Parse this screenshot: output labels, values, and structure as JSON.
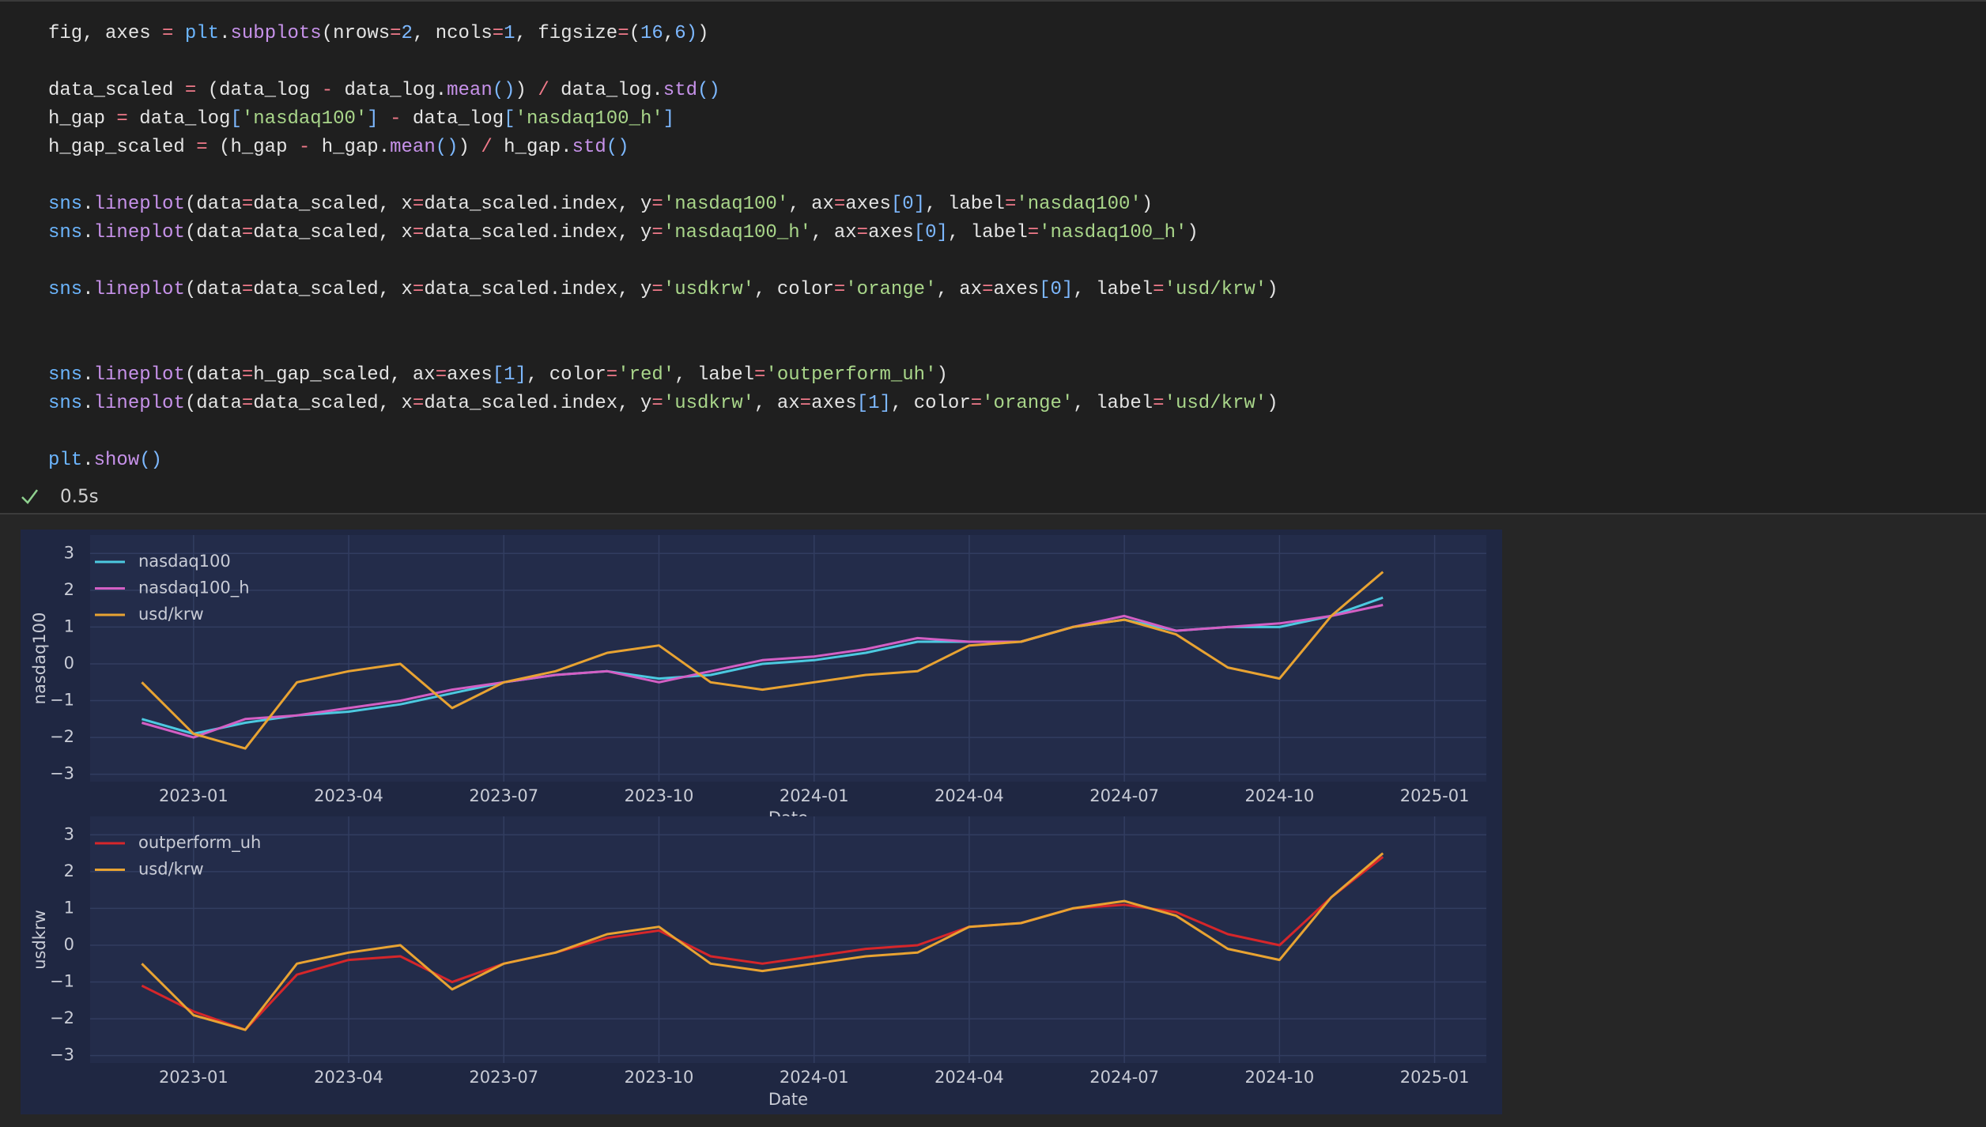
{
  "notebook": {
    "code_lines": [
      "fig, axes = plt.subplots(nrows=2, ncols=1, figsize=(16,6))",
      "data_scaled = (data_log - data_log.mean()) / data_log.std()",
      "h_gap = data_log['nasdaq100'] - data_log['nasdaq100_h']",
      "h_gap_scaled = (h_gap - h_gap.mean()) / h_gap.std()",
      "sns.lineplot(data=data_scaled, x=data_scaled.index, y='nasdaq100', ax=axes[0], label='nasdaq100')",
      "sns.lineplot(data=data_scaled, x=data_scaled.index, y='nasdaq100_h', ax=axes[0], label='nasdaq100_h')",
      "sns.lineplot(data=data_scaled, x=data_scaled.index, y='usdkrw', color='orange', ax=axes[0], label='usd/krw')",
      "sns.lineplot(data=h_gap_scaled, ax=axes[1], color='red', label='outperform_uh')",
      "sns.lineplot(data=data_scaled, x=data_scaled.index, y='usdkrw', ax=axes[1], color='orange', label='usd/krw')",
      "plt.show()"
    ],
    "status": "0.5s"
  },
  "chart_data": [
    {
      "type": "line",
      "xlabel": "Date",
      "ylabel": "nasdaq100",
      "grid": true,
      "legend": "upper left",
      "x": [
        "2022-12",
        "2023-01",
        "2023-02",
        "2023-03",
        "2023-04",
        "2023-05",
        "2023-06",
        "2023-07",
        "2023-08",
        "2023-09",
        "2023-10",
        "2023-11",
        "2023-12",
        "2024-01",
        "2024-02",
        "2024-03",
        "2024-04",
        "2024-05",
        "2024-06",
        "2024-07",
        "2024-08",
        "2024-09",
        "2024-10",
        "2024-11",
        "2024-12"
      ],
      "xlim": [
        "2022-11",
        "2025-02"
      ],
      "xticks": [
        "2023-01",
        "2023-04",
        "2023-07",
        "2023-10",
        "2024-01",
        "2024-04",
        "2024-07",
        "2024-10",
        "2025-01"
      ],
      "ylim": [
        -3.2,
        3.5
      ],
      "yticks": [
        {
          "value": -3,
          "label": "−3"
        },
        {
          "value": -2,
          "label": "−2"
        },
        {
          "value": -1,
          "label": "−1"
        },
        0,
        1,
        2,
        3
      ],
      "series": [
        {
          "name": "nasdaq100",
          "color": "#4cc9e0",
          "values": [
            -1.5,
            -1.9,
            -1.6,
            -1.4,
            -1.3,
            -1.1,
            -0.8,
            -0.5,
            -0.3,
            -0.2,
            -0.4,
            -0.3,
            0.0,
            0.1,
            0.3,
            0.6,
            0.6,
            0.6,
            1.0,
            1.2,
            0.9,
            1.0,
            1.0,
            1.3,
            1.8
          ]
        },
        {
          "name": "nasdaq100_h",
          "color": "#d35fc4",
          "values": [
            -1.6,
            -2.0,
            -1.5,
            -1.4,
            -1.2,
            -1.0,
            -0.7,
            -0.5,
            -0.3,
            -0.2,
            -0.5,
            -0.2,
            0.1,
            0.2,
            0.4,
            0.7,
            0.6,
            0.6,
            1.0,
            1.3,
            0.9,
            1.0,
            1.1,
            1.3,
            1.6
          ]
        },
        {
          "name": "usd/krw",
          "color": "#e8a332",
          "values": [
            -0.5,
            -1.9,
            -2.3,
            -0.5,
            -0.2,
            0.0,
            -1.2,
            -0.5,
            -0.2,
            0.3,
            0.5,
            -0.5,
            -0.7,
            -0.5,
            -0.3,
            -0.2,
            0.5,
            0.6,
            1.0,
            1.2,
            0.8,
            -0.1,
            -0.4,
            1.3,
            2.5
          ]
        }
      ]
    },
    {
      "type": "line",
      "xlabel": "Date",
      "ylabel": "usdkrw",
      "grid": true,
      "legend": "upper left",
      "x": [
        "2022-12",
        "2023-01",
        "2023-02",
        "2023-03",
        "2023-04",
        "2023-05",
        "2023-06",
        "2023-07",
        "2023-08",
        "2023-09",
        "2023-10",
        "2023-11",
        "2023-12",
        "2024-01",
        "2024-02",
        "2024-03",
        "2024-04",
        "2024-05",
        "2024-06",
        "2024-07",
        "2024-08",
        "2024-09",
        "2024-10",
        "2024-11",
        "2024-12"
      ],
      "xlim": [
        "2022-11",
        "2025-02"
      ],
      "xticks": [
        "2023-01",
        "2023-04",
        "2023-07",
        "2023-10",
        "2024-01",
        "2024-04",
        "2024-07",
        "2024-10",
        "2025-01"
      ],
      "ylim": [
        -3.2,
        3.5
      ],
      "yticks": [
        {
          "value": -3,
          "label": "−3"
        },
        {
          "value": -2,
          "label": "−2"
        },
        {
          "value": -1,
          "label": "−1"
        },
        0,
        1,
        2,
        3
      ],
      "series": [
        {
          "name": "outperform_uh",
          "color": "#d6262a",
          "values": [
            -1.1,
            -1.8,
            -2.3,
            -0.8,
            -0.4,
            -0.3,
            -1.0,
            -0.5,
            -0.2,
            0.2,
            0.4,
            -0.3,
            -0.5,
            -0.3,
            -0.1,
            0.0,
            0.5,
            0.6,
            1.0,
            1.1,
            0.9,
            0.3,
            0.0,
            1.3,
            2.4
          ]
        },
        {
          "name": "usd/krw",
          "color": "#e8a332",
          "values": [
            -0.5,
            -1.9,
            -2.3,
            -0.5,
            -0.2,
            0.0,
            -1.2,
            -0.5,
            -0.2,
            0.3,
            0.5,
            -0.5,
            -0.7,
            -0.5,
            -0.3,
            -0.2,
            0.5,
            0.6,
            1.0,
            1.2,
            0.8,
            -0.1,
            -0.4,
            1.3,
            2.5
          ]
        }
      ]
    }
  ]
}
